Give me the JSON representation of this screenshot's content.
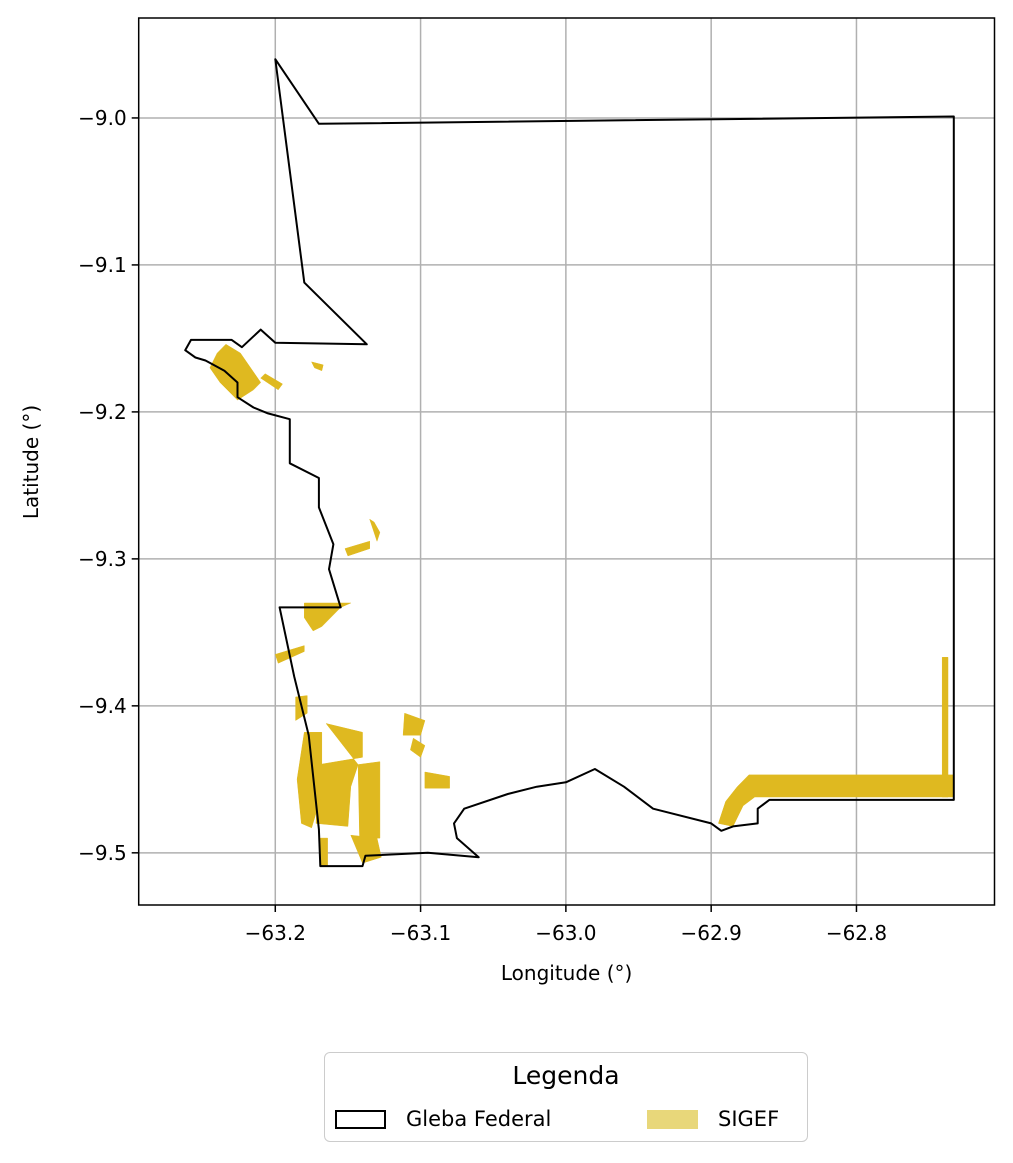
{
  "x_ticks": [
    {
      "value": -63.2,
      "label": "−63.2"
    },
    {
      "value": -63.1,
      "label": "−63.1"
    },
    {
      "value": -63.0,
      "label": "−63.0"
    },
    {
      "value": -62.9,
      "label": "−62.9"
    },
    {
      "value": -62.8,
      "label": "−62.8"
    }
  ],
  "y_ticks": [
    {
      "value": -9.0,
      "label": "−9.0"
    },
    {
      "value": -9.1,
      "label": "−9.1"
    },
    {
      "value": -9.2,
      "label": "−9.2"
    },
    {
      "value": -9.3,
      "label": "−9.3"
    },
    {
      "value": -9.4,
      "label": "−9.4"
    },
    {
      "value": -9.5,
      "label": "−9.5"
    }
  ],
  "xlabel": "Longitude (°)",
  "ylabel": "Latitude (°)",
  "xlim": [
    -63.294,
    -62.705
  ],
  "ylim": [
    -9.5355,
    -8.932
  ],
  "grid": true,
  "colors": {
    "boundary": "#000000",
    "sigef": "#dfb920",
    "sigef_legend": "#e8d77a",
    "grid": "#b0b0b0"
  },
  "legend": {
    "title": "Legenda",
    "placement": "bottom-center",
    "entries": [
      {
        "label": "Gleba Federal",
        "style": "outline"
      },
      {
        "label": "SIGEF",
        "style": "fill"
      }
    ]
  },
  "boundary": [
    [
      -63.2,
      -8.96
    ],
    [
      -63.17,
      -9.004
    ],
    [
      -62.733,
      -8.999
    ],
    [
      -62.733,
      -9.464
    ],
    [
      -62.86,
      -9.464
    ],
    [
      -62.868,
      -9.47
    ],
    [
      -62.868,
      -9.48
    ],
    [
      -62.885,
      -9.482
    ],
    [
      -62.893,
      -9.485
    ],
    [
      -62.9,
      -9.48
    ],
    [
      -62.94,
      -9.47
    ],
    [
      -62.96,
      -9.455
    ],
    [
      -62.98,
      -9.443
    ],
    [
      -63.0,
      -9.452
    ],
    [
      -63.02,
      -9.455
    ],
    [
      -63.04,
      -9.46
    ],
    [
      -63.07,
      -9.47
    ],
    [
      -63.077,
      -9.48
    ],
    [
      -63.075,
      -9.49
    ],
    [
      -63.06,
      -9.503
    ],
    [
      -63.095,
      -9.5
    ],
    [
      -63.138,
      -9.502
    ],
    [
      -63.14,
      -9.509
    ],
    [
      -63.169,
      -9.509
    ],
    [
      -63.17,
      -9.484
    ],
    [
      -63.177,
      -9.42
    ],
    [
      -63.187,
      -9.38
    ],
    [
      -63.197,
      -9.333
    ],
    [
      -63.155,
      -9.333
    ],
    [
      -63.163,
      -9.307
    ],
    [
      -63.16,
      -9.29
    ],
    [
      -63.17,
      -9.265
    ],
    [
      -63.17,
      -9.245
    ],
    [
      -63.19,
      -9.235
    ],
    [
      -63.19,
      -9.215
    ],
    [
      -63.19,
      -9.205
    ],
    [
      -63.205,
      -9.201
    ],
    [
      -63.215,
      -9.197
    ],
    [
      -63.226,
      -9.19
    ],
    [
      -63.226,
      -9.18
    ],
    [
      -63.235,
      -9.172
    ],
    [
      -63.248,
      -9.165
    ],
    [
      -63.255,
      -9.163
    ],
    [
      -63.262,
      -9.158
    ],
    [
      -63.258,
      -9.151
    ],
    [
      -63.23,
      -9.151
    ],
    [
      -63.223,
      -9.156
    ],
    [
      -63.21,
      -9.144
    ],
    [
      -63.2,
      -9.153
    ],
    [
      -63.137,
      -9.154
    ],
    [
      -63.18,
      -9.112
    ],
    [
      -63.2,
      -8.96
    ]
  ],
  "sigef_parcels": [
    [
      [
        -63.234,
        -9.154
      ],
      [
        -63.224,
        -9.16
      ],
      [
        -63.21,
        -9.18
      ],
      [
        -63.215,
        -9.185
      ],
      [
        -63.226,
        -9.192
      ],
      [
        -63.238,
        -9.18
      ],
      [
        -63.245,
        -9.17
      ],
      [
        -63.24,
        -9.16
      ]
    ],
    [
      [
        -63.207,
        -9.174
      ],
      [
        -63.195,
        -9.181
      ],
      [
        -63.198,
        -9.185
      ],
      [
        -63.21,
        -9.177
      ]
    ],
    [
      [
        -63.175,
        -9.166
      ],
      [
        -63.167,
        -9.168
      ],
      [
        -63.168,
        -9.172
      ],
      [
        -63.173,
        -9.17
      ]
    ],
    [
      [
        -63.135,
        -9.273
      ],
      [
        -63.13,
        -9.288
      ],
      [
        -63.128,
        -9.282
      ],
      [
        -63.132,
        -9.275
      ]
    ],
    [
      [
        -63.152,
        -9.293
      ],
      [
        -63.135,
        -9.288
      ],
      [
        -63.135,
        -9.293
      ],
      [
        -63.15,
        -9.298
      ]
    ],
    [
      [
        -63.155,
        -9.333
      ],
      [
        -63.148,
        -9.33
      ],
      [
        -63.18,
        -9.33
      ],
      [
        -63.18,
        -9.34
      ],
      [
        -63.174,
        -9.349
      ],
      [
        -63.168,
        -9.346
      ]
    ],
    [
      [
        -63.2,
        -9.365
      ],
      [
        -63.18,
        -9.359
      ],
      [
        -63.18,
        -9.363
      ],
      [
        -63.198,
        -9.371
      ]
    ],
    [
      [
        -63.186,
        -9.394
      ],
      [
        -63.178,
        -9.393
      ],
      [
        -63.178,
        -9.405
      ],
      [
        -63.186,
        -9.41
      ]
    ],
    [
      [
        -63.165,
        -9.412
      ],
      [
        -63.14,
        -9.418
      ],
      [
        -63.14,
        -9.435
      ],
      [
        -63.17,
        -9.44
      ],
      [
        -63.172,
        -9.48
      ],
      [
        -63.15,
        -9.482
      ],
      [
        -63.148,
        -9.455
      ],
      [
        -63.143,
        -9.44
      ]
    ],
    [
      [
        -63.18,
        -9.418
      ],
      [
        -63.168,
        -9.418
      ],
      [
        -63.168,
        -9.46
      ],
      [
        -63.175,
        -9.483
      ],
      [
        -63.182,
        -9.48
      ],
      [
        -63.185,
        -9.45
      ]
    ],
    [
      [
        -63.143,
        -9.44
      ],
      [
        -63.128,
        -9.438
      ],
      [
        -63.128,
        -9.49
      ],
      [
        -63.142,
        -9.49
      ]
    ],
    [
      [
        -63.111,
        -9.405
      ],
      [
        -63.097,
        -9.41
      ],
      [
        -63.1,
        -9.42
      ],
      [
        -63.112,
        -9.42
      ]
    ],
    [
      [
        -63.105,
        -9.422
      ],
      [
        -63.097,
        -9.427
      ],
      [
        -63.1,
        -9.435
      ],
      [
        -63.107,
        -9.43
      ]
    ],
    [
      [
        -63.097,
        -9.445
      ],
      [
        -63.08,
        -9.448
      ],
      [
        -63.08,
        -9.456
      ],
      [
        -63.097,
        -9.456
      ]
    ],
    [
      [
        -63.169,
        -9.49
      ],
      [
        -63.164,
        -9.49
      ],
      [
        -63.164,
        -9.509
      ],
      [
        -63.169,
        -9.509
      ]
    ],
    [
      [
        -63.148,
        -9.488
      ],
      [
        -63.13,
        -9.49
      ],
      [
        -63.127,
        -9.503
      ],
      [
        -63.14,
        -9.507
      ]
    ],
    [
      [
        -62.874,
        -9.447
      ],
      [
        -62.733,
        -9.447
      ],
      [
        -62.733,
        -9.462
      ],
      [
        -62.87,
        -9.462
      ],
      [
        -62.878,
        -9.468
      ],
      [
        -62.885,
        -9.482
      ],
      [
        -62.895,
        -9.48
      ],
      [
        -62.89,
        -9.465
      ],
      [
        -62.882,
        -9.455
      ]
    ],
    [
      [
        -62.741,
        -9.367
      ],
      [
        -62.737,
        -9.367
      ],
      [
        -62.737,
        -9.462
      ],
      [
        -62.741,
        -9.462
      ]
    ]
  ]
}
